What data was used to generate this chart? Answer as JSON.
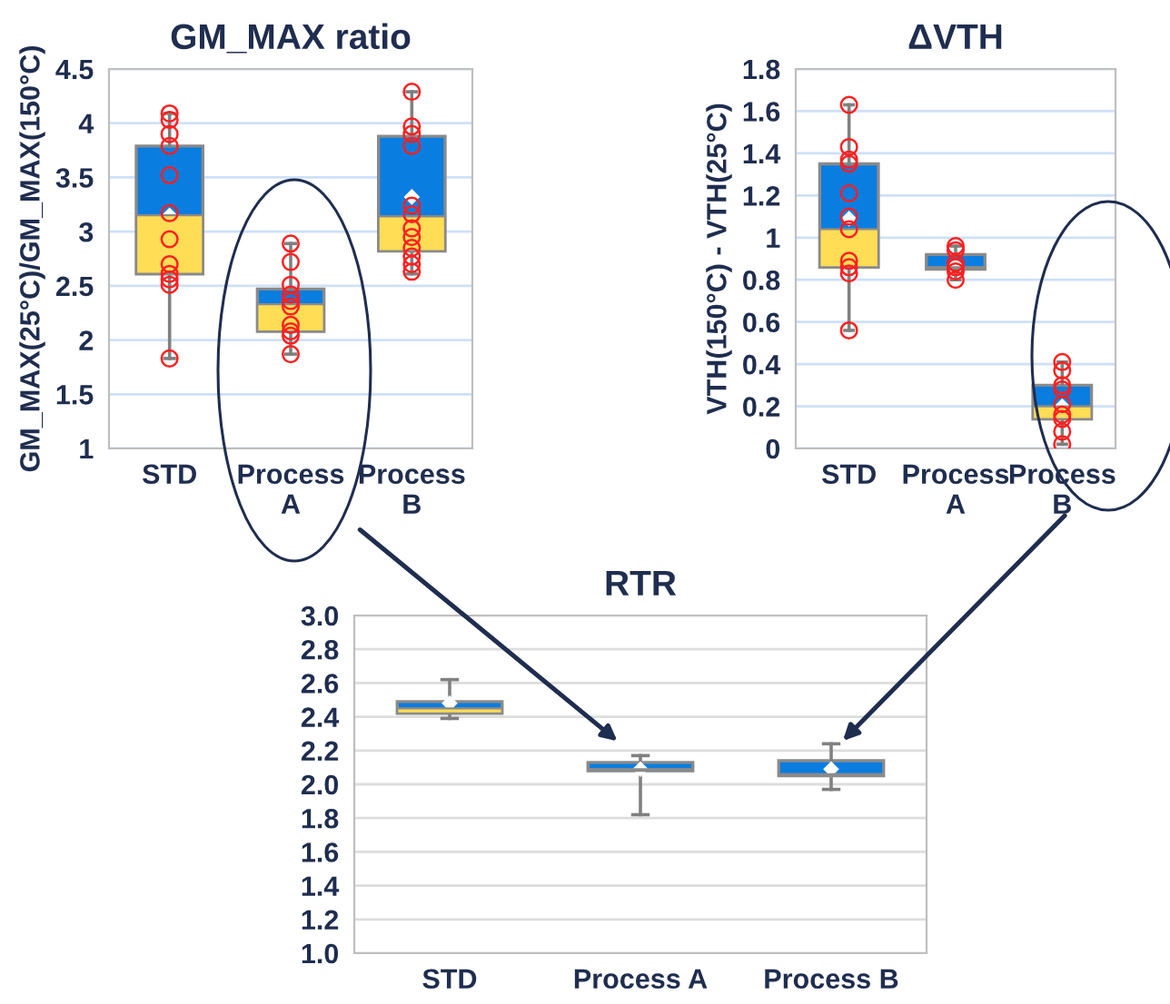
{
  "chart_data": [
    {
      "type": "box",
      "title": "GM_MAX ratio",
      "ylabel": "GM_MAX(25°C)/GM_MAX(150°C)",
      "categories": [
        "STD",
        "Process\nA",
        "Process\nB"
      ],
      "colors": [
        [
          "#ffdd55",
          "#0a7de0"
        ],
        [
          "#ffdd55",
          "#0a7de0"
        ],
        [
          "#ffdd55",
          "#0a7de0"
        ]
      ],
      "grid": "y",
      "ylim": [
        1,
        4.5
      ],
      "yticks": [
        1,
        1.5,
        2,
        2.5,
        3,
        3.5,
        4,
        4.5
      ],
      "boxes": [
        {
          "low": 1.83,
          "q1": 2.61,
          "median": 3.15,
          "q3": 3.79,
          "high": 4.09,
          "mean": 3.15
        },
        {
          "low": 1.87,
          "q1": 2.08,
          "median": 2.33,
          "q3": 2.47,
          "high": 2.89
        },
        {
          "low": 2.61,
          "q1": 2.82,
          "median": 3.14,
          "q3": 3.88,
          "high": 4.29,
          "mean": 3.32
        }
      ],
      "series": [
        {
          "type": "scatter",
          "color": "#ff2020",
          "marker": "circle",
          "x": [
            "STD",
            "STD",
            "STD",
            "STD",
            "STD",
            "STD",
            "STD",
            "STD",
            "STD",
            "STD",
            "STD",
            "STD",
            "Process\nA",
            "Process\nA",
            "Process\nA",
            "Process\nA",
            "Process\nA",
            "Process\nA",
            "Process\nA",
            "Process\nA",
            "Process\nA",
            "Process\nA",
            "Process\nB",
            "Process\nB",
            "Process\nB",
            "Process\nB",
            "Process\nB",
            "Process\nB",
            "Process\nB",
            "Process\nB",
            "Process\nB",
            "Process\nB",
            "Process\nB",
            "Process\nB"
          ],
          "values": [
            4.09,
            4.03,
            3.9,
            3.79,
            3.52,
            3.17,
            2.93,
            2.7,
            2.61,
            2.56,
            2.51,
            1.83,
            2.89,
            2.72,
            2.51,
            2.42,
            2.36,
            2.31,
            2.14,
            2.08,
            2.04,
            1.87,
            4.29,
            3.97,
            3.9,
            3.79,
            3.24,
            3.16,
            3.03,
            2.95,
            2.85,
            2.77,
            2.7,
            2.63
          ]
        }
      ]
    },
    {
      "type": "box",
      "title": "ΔVTH",
      "ylabel": "VTH(150°C) - VTH(25°C)",
      "categories": [
        "STD",
        "Process\nA",
        "Process\nB"
      ],
      "colors": [
        [
          "#ffdd55",
          "#0a7de0"
        ],
        [
          "#ffdd55",
          "#0a7de0"
        ],
        [
          "#ffdd55",
          "#0a7de0"
        ]
      ],
      "grid": "y",
      "ylim": [
        0,
        1.8
      ],
      "yticks": [
        0,
        0.2,
        0.4,
        0.6,
        0.8,
        1,
        1.2,
        1.4,
        1.6,
        1.8
      ],
      "boxes": [
        {
          "low": 0.56,
          "q1": 0.86,
          "median": 1.04,
          "q3": 1.35,
          "high": 1.63,
          "mean": 1.09
        },
        {
          "low": 0.8,
          "q1": 0.85,
          "median": 0.86,
          "q3": 0.92,
          "high": 0.96,
          "mean": 0.87
        },
        {
          "low": 0.02,
          "q1": 0.14,
          "median": 0.2,
          "q3": 0.3,
          "high": 0.41,
          "mean": 0.2
        }
      ],
      "series": [
        {
          "type": "scatter",
          "color": "#ff2020",
          "marker": "circle",
          "x": [
            "STD",
            "STD",
            "STD",
            "STD",
            "STD",
            "STD",
            "STD",
            "STD",
            "STD",
            "STD",
            "STD",
            "Process\nA",
            "Process\nA",
            "Process\nA",
            "Process\nA",
            "Process\nA",
            "Process\nA",
            "Process\nB",
            "Process\nB",
            "Process\nB",
            "Process\nB",
            "Process\nB",
            "Process\nB",
            "Process\nB",
            "Process\nB",
            "Process\nB"
          ],
          "values": [
            1.63,
            1.43,
            1.37,
            1.35,
            1.21,
            1.1,
            1.04,
            0.89,
            0.86,
            0.83,
            0.56,
            0.96,
            0.94,
            0.88,
            0.86,
            0.84,
            0.8,
            0.41,
            0.37,
            0.3,
            0.28,
            0.21,
            0.16,
            0.14,
            0.08,
            0.02
          ]
        }
      ]
    },
    {
      "type": "box",
      "title": "RTR",
      "categories": [
        "STD",
        "Process A",
        "Process B"
      ],
      "colors": [
        [
          "#ffdd55",
          "#0a7de0"
        ],
        [
          "#ffdd55",
          "#0a7de0"
        ],
        [
          "#ffdd55",
          "#0a7de0"
        ]
      ],
      "grid": "y",
      "ylim": [
        1,
        3
      ],
      "yticks": [
        {
          "value": 1,
          "label": "1.0"
        },
        1.2,
        1.4,
        1.6,
        1.8,
        {
          "value": 2,
          "label": "2.0"
        },
        2.2,
        2.4,
        2.6,
        2.8,
        {
          "value": 3,
          "label": "3.0"
        }
      ],
      "boxes": [
        {
          "low": 2.39,
          "q1": 2.42,
          "median": 2.45,
          "q3": 2.49,
          "high": 2.62,
          "mean": 2.48
        },
        {
          "low": 1.82,
          "q1": 2.08,
          "median": 2.09,
          "q3": 2.13,
          "high": 2.17,
          "mean": 2.09
        },
        {
          "low": 1.97,
          "q1": 2.05,
          "median": 2.06,
          "q3": 2.14,
          "high": 2.24,
          "mean": 2.09
        }
      ]
    }
  ]
}
